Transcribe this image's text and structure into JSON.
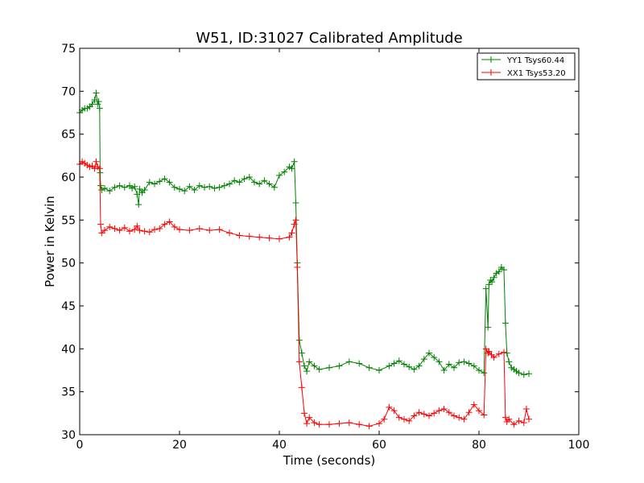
{
  "chart_data": {
    "type": "line",
    "title": "W51, ID:31027 Calibrated Amplitude",
    "xlabel": "Time (seconds)",
    "ylabel": "Power in Kelvin",
    "xlim": [
      0,
      100
    ],
    "ylim": [
      30,
      75
    ],
    "xticks": [
      0,
      20,
      40,
      60,
      80,
      100
    ],
    "yticks": [
      30,
      35,
      40,
      45,
      50,
      55,
      60,
      65,
      70,
      75
    ],
    "grid": false,
    "legend": "top-right",
    "marker": "plus",
    "series": [
      {
        "name": "YY1 Tsys60.44",
        "color": "#008000",
        "x": [
          0,
          0.5,
          1,
          1.5,
          2,
          2.5,
          3,
          3.3,
          3.6,
          3.8,
          4,
          4.1,
          4.2,
          4.4,
          5,
          6,
          7,
          8,
          9,
          10,
          10.5,
          11,
          11.5,
          11.8,
          12,
          12.5,
          13,
          14,
          15,
          16,
          17,
          18,
          19,
          20,
          21,
          22,
          23,
          24,
          25,
          26,
          27,
          28,
          29,
          30,
          31,
          32,
          33,
          34,
          35,
          36,
          37,
          38,
          39,
          40,
          41,
          42,
          42.5,
          43,
          43.3,
          43.6,
          44,
          44.5,
          45,
          45.5,
          46,
          47,
          48,
          50,
          52,
          54,
          56,
          58,
          60,
          62,
          63,
          64,
          65,
          66,
          67,
          68,
          69,
          70,
          71,
          72,
          73,
          74,
          75,
          76,
          77,
          78,
          79,
          80,
          81,
          81.4,
          81.8,
          82,
          82.3,
          82.6,
          83,
          83.5,
          84,
          84.5,
          85,
          85.3,
          85.6,
          86,
          86.5,
          87,
          87.5,
          88,
          89,
          90
        ],
        "values": [
          67.5,
          67.8,
          68,
          68,
          68.2,
          68.5,
          69,
          69.8,
          68.5,
          68.8,
          68,
          60.5,
          59,
          58.5,
          58.7,
          58.4,
          58.8,
          59,
          58.8,
          59,
          58.7,
          58.9,
          58,
          56.8,
          58.6,
          58.2,
          58.5,
          59.4,
          59.2,
          59.5,
          59.8,
          59.4,
          58.8,
          58.6,
          58.4,
          58.9,
          58.5,
          59,
          58.8,
          58.9,
          58.7,
          58.8,
          59,
          59.2,
          59.6,
          59.4,
          59.8,
          60,
          59.4,
          59.2,
          59.6,
          59.2,
          58.8,
          60.2,
          60.6,
          61.2,
          61,
          61.8,
          57,
          50,
          41,
          39.5,
          38,
          37.4,
          38.5,
          38,
          37.6,
          37.8,
          38,
          38.5,
          38.3,
          37.8,
          37.5,
          38,
          38.3,
          38.6,
          38.2,
          37.9,
          37.6,
          38,
          38.8,
          39.5,
          39,
          38.5,
          37.5,
          38.2,
          37.8,
          38.4,
          38.5,
          38.3,
          38,
          37.5,
          37.2,
          47,
          42.5,
          47.5,
          48,
          47.8,
          48.3,
          48.8,
          49,
          49.5,
          49.2,
          43,
          39.5,
          38.5,
          37.8,
          37.6,
          37.4,
          37.2,
          37,
          37.1
        ]
      },
      {
        "name": "XX1 Tsys53.20",
        "color": "#ff0000",
        "x": [
          0,
          0.5,
          1,
          1.5,
          2,
          2.5,
          3,
          3.3,
          3.6,
          4,
          4.2,
          4.4,
          5,
          6,
          7,
          8,
          9,
          10,
          11,
          11.5,
          12,
          13,
          14,
          15,
          16,
          17,
          18,
          19,
          20,
          22,
          24,
          26,
          28,
          30,
          32,
          34,
          36,
          38,
          40,
          42,
          42.5,
          43,
          43.3,
          43.6,
          44,
          44.5,
          45,
          45.5,
          46,
          47,
          48,
          50,
          52,
          54,
          56,
          58,
          60,
          61,
          62,
          63,
          64,
          65,
          66,
          67,
          68,
          69,
          70,
          71,
          72,
          73,
          74,
          75,
          76,
          77,
          78,
          79,
          80,
          81,
          81.4,
          81.8,
          82,
          82.5,
          83,
          84,
          85,
          85.3,
          85.6,
          86,
          87,
          88,
          89,
          89.5,
          90
        ],
        "values": [
          61.5,
          61.8,
          61.6,
          61.4,
          61.2,
          61.3,
          61,
          61.8,
          61.2,
          61,
          54.5,
          53.5,
          53.8,
          54.2,
          54,
          53.8,
          54.1,
          53.7,
          53.9,
          54.3,
          53.8,
          53.7,
          53.6,
          53.9,
          54,
          54.5,
          54.8,
          54.2,
          53.9,
          53.8,
          54,
          53.8,
          53.9,
          53.5,
          53.2,
          53.1,
          53,
          52.9,
          52.8,
          53,
          53.5,
          54.5,
          55,
          49.5,
          38.5,
          35.5,
          32.5,
          31.3,
          32,
          31.4,
          31.2,
          31.2,
          31.3,
          31.4,
          31.2,
          31,
          31.3,
          31.8,
          33.2,
          32.8,
          32,
          31.8,
          31.6,
          32.2,
          32.6,
          32.4,
          32.2,
          32.5,
          32.8,
          33,
          32.6,
          32.2,
          32,
          31.8,
          32.6,
          33.5,
          32.8,
          32.3,
          40,
          39.5,
          39.7,
          39.3,
          39,
          39.4,
          39.6,
          32,
          31.5,
          31.8,
          31.2,
          31.6,
          31.4,
          33,
          31.8
        ]
      }
    ]
  }
}
